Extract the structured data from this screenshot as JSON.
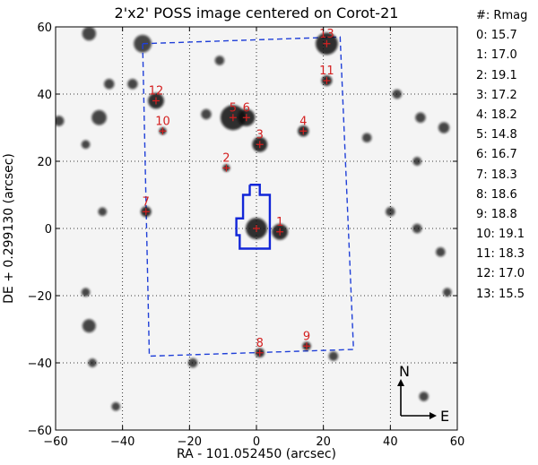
{
  "chart_data": {
    "type": "scatter",
    "title": "2'x2' POSS image centered on Corot-21",
    "xlabel": "RA - 101.052450 (arcsec)",
    "ylabel": "DE + 0.299130 (arcsec)",
    "xlim": [
      -60,
      60
    ],
    "ylim": [
      -60,
      60
    ],
    "xticks": [
      -60,
      -40,
      -20,
      0,
      20,
      40,
      60
    ],
    "yticks": [
      -60,
      -40,
      -20,
      0,
      20,
      40,
      60
    ],
    "grid": true,
    "stars": [
      {
        "id": "0",
        "x": 0,
        "y": 0,
        "rmag": "15.7"
      },
      {
        "id": "1",
        "x": 7,
        "y": -1,
        "rmag": "17.0"
      },
      {
        "id": "2",
        "x": -9,
        "y": 18,
        "rmag": "19.1"
      },
      {
        "id": "3",
        "x": 1,
        "y": 25,
        "rmag": "17.2"
      },
      {
        "id": "4",
        "x": 14,
        "y": 29,
        "rmag": "18.2"
      },
      {
        "id": "5",
        "x": -7,
        "y": 33,
        "rmag": "14.8"
      },
      {
        "id": "6",
        "x": -3,
        "y": 33,
        "rmag": "16.7"
      },
      {
        "id": "7",
        "x": -33,
        "y": 5,
        "rmag": "18.3"
      },
      {
        "id": "8",
        "x": 1,
        "y": -37,
        "rmag": "18.6"
      },
      {
        "id": "9",
        "x": 15,
        "y": -35,
        "rmag": "18.8"
      },
      {
        "id": "10",
        "x": -28,
        "y": 29,
        "rmag": "19.1"
      },
      {
        "id": "11",
        "x": 21,
        "y": 44,
        "rmag": "18.3"
      },
      {
        "id": "12",
        "x": -30,
        "y": 38,
        "rmag": "17.0"
      },
      {
        "id": "13",
        "x": 21,
        "y": 55,
        "rmag": "15.5"
      }
    ],
    "legend_header": "#: Rmag",
    "field_of_view": [
      [
        -34,
        55
      ],
      [
        25,
        57
      ],
      [
        29,
        -36
      ],
      [
        -32,
        -38
      ],
      [
        -34,
        55
      ]
    ],
    "aperture": [
      [
        -2,
        13
      ],
      [
        1,
        13
      ],
      [
        1,
        10
      ],
      [
        4,
        10
      ],
      [
        4,
        -6
      ],
      [
        -5,
        -6
      ],
      [
        -5,
        -2
      ],
      [
        -6,
        -2
      ],
      [
        -6,
        3
      ],
      [
        -4,
        3
      ],
      [
        -4,
        10
      ],
      [
        -2,
        10
      ],
      [
        -2,
        13
      ]
    ],
    "compass": {
      "north": "N",
      "east": "E"
    },
    "background_sources": [
      {
        "x": -50,
        "y": 58,
        "s": 3.5
      },
      {
        "x": -34,
        "y": 55,
        "s": 4.5
      },
      {
        "x": -44,
        "y": 43,
        "s": 2.6
      },
      {
        "x": -47,
        "y": 33,
        "s": 3.8
      },
      {
        "x": -59,
        "y": 32,
        "s": 2.6
      },
      {
        "x": -51,
        "y": 25,
        "s": 2.2
      },
      {
        "x": -37,
        "y": 43,
        "s": 2.6
      },
      {
        "x": -15,
        "y": 34,
        "s": 2.6
      },
      {
        "x": -11,
        "y": 50,
        "s": 2.4
      },
      {
        "x": 42,
        "y": 40,
        "s": 2.4
      },
      {
        "x": 49,
        "y": 33,
        "s": 2.6
      },
      {
        "x": 56,
        "y": 30,
        "s": 2.8
      },
      {
        "x": 48,
        "y": 20,
        "s": 2.2
      },
      {
        "x": 33,
        "y": 27,
        "s": 2.4
      },
      {
        "x": 40,
        "y": 5,
        "s": 2.4
      },
      {
        "x": 48,
        "y": 0,
        "s": 2.4
      },
      {
        "x": 55,
        "y": -7,
        "s": 2.4
      },
      {
        "x": -46,
        "y": 5,
        "s": 2.2
      },
      {
        "x": -51,
        "y": -19,
        "s": 2.2
      },
      {
        "x": -50,
        "y": -29,
        "s": 3.4
      },
      {
        "x": -49,
        "y": -40,
        "s": 2.2
      },
      {
        "x": 57,
        "y": -19,
        "s": 2.2
      },
      {
        "x": 50,
        "y": -50,
        "s": 2.4
      },
      {
        "x": -19,
        "y": -40,
        "s": 2.4
      },
      {
        "x": 23,
        "y": -38,
        "s": 2.4
      },
      {
        "x": -42,
        "y": -53,
        "s": 2.2
      }
    ]
  }
}
